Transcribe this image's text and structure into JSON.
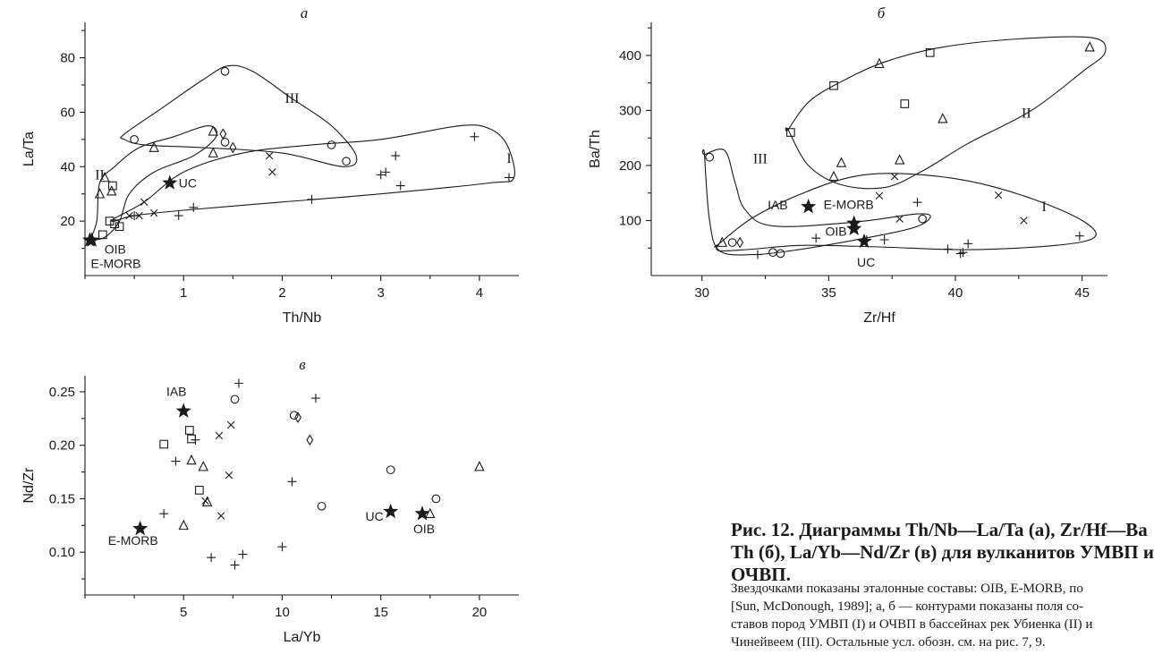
{
  "caption": {
    "title_lines": [
      "Рис. 12. Диаграммы Th/Nb—La/Ta (а), Zr/Hf—Ba",
      "Th (б), La/Yb—Nd/Zr (в) для вулканитов УМВП и",
      "ОЧВП."
    ],
    "text_lines": [
      "Звездочками показаны эталонные составы: OIB, E-MORB, по",
      "[Sun, McDonough, 1989]; а, б — контурами показаны поля со-",
      "ставов пород УМВП (I) и ОЧВП в бассейнах рек Убиенка (II) и",
      "Чинейвеем (III). Остальные усл. обозн. см. на рис. 7, 9."
    ]
  },
  "chart_data": [
    {
      "id": "a",
      "type": "scatter",
      "title": "а",
      "xlabel": "Th/Nb",
      "ylabel": "La/Ta",
      "xlim": [
        0,
        4.4
      ],
      "ylim": [
        0,
        93
      ],
      "xticks": [
        1,
        2,
        3,
        4
      ],
      "yticks": [
        20,
        40,
        60,
        80
      ],
      "series": [
        {
          "marker": "circle",
          "points": [
            [
              0.5,
              50
            ],
            [
              1.42,
              75
            ],
            [
              1.42,
              49
            ],
            [
              2.5,
              48
            ],
            [
              2.65,
              42
            ]
          ]
        },
        {
          "marker": "triangle",
          "points": [
            [
              0.15,
              30
            ],
            [
              0.2,
              36
            ],
            [
              0.27,
              31
            ],
            [
              0.7,
              47
            ],
            [
              1.3,
              45
            ],
            [
              1.3,
              53
            ]
          ]
        },
        {
          "marker": "square",
          "points": [
            [
              0.18,
              15
            ],
            [
              0.25,
              20
            ],
            [
              0.28,
              33
            ],
            [
              0.3,
              19
            ],
            [
              0.35,
              18
            ]
          ]
        },
        {
          "marker": "diamond",
          "points": [
            [
              1.4,
              52
            ],
            [
              1.5,
              47
            ]
          ]
        },
        {
          "marker": "x",
          "points": [
            [
              0.45,
              22
            ],
            [
              0.55,
              22
            ],
            [
              0.6,
              27
            ],
            [
              0.7,
              23
            ],
            [
              1.87,
              44
            ],
            [
              1.9,
              38
            ]
          ]
        },
        {
          "marker": "plus",
          "points": [
            [
              0.5,
              22
            ],
            [
              0.95,
              22
            ],
            [
              1.1,
              25
            ],
            [
              2.3,
              28
            ],
            [
              3.0,
              37
            ],
            [
              3.05,
              38
            ],
            [
              3.15,
              44
            ],
            [
              3.2,
              33
            ],
            [
              3.95,
              51
            ],
            [
              4.3,
              36
            ]
          ]
        }
      ],
      "references": [
        {
          "label": "UC",
          "x": 0.86,
          "y": 34
        },
        {
          "label": "OIB",
          "x": 0.07,
          "y": 13
        },
        {
          "label": "E-MORB",
          "x": 0.05,
          "y": 13
        }
      ],
      "fields": [
        {
          "label": "I",
          "points": [
            [
              0.3,
              21
            ],
            [
              0.6,
              27
            ],
            [
              1.0,
              38
            ],
            [
              1.6,
              45
            ],
            [
              2.3,
              48
            ],
            [
              3.0,
              50
            ],
            [
              3.8,
              55
            ],
            [
              4.1,
              54
            ],
            [
              4.28,
              48
            ],
            [
              4.35,
              36
            ],
            [
              4.1,
              34
            ],
            [
              3.0,
              30
            ],
            [
              2.0,
              27
            ],
            [
              1.0,
              24
            ],
            [
              0.5,
              22
            ],
            [
              0.3,
              20
            ]
          ]
        },
        {
          "label": "II",
          "points": [
            [
              0.05,
              13
            ],
            [
              0.12,
              20
            ],
            [
              0.15,
              34
            ],
            [
              0.3,
              40
            ],
            [
              0.55,
              47
            ],
            [
              0.9,
              51
            ],
            [
              1.25,
              55
            ],
            [
              1.33,
              51
            ],
            [
              1.1,
              44
            ],
            [
              0.7,
              38
            ],
            [
              0.45,
              30
            ],
            [
              0.35,
              20
            ],
            [
              0.2,
              14
            ],
            [
              0.05,
              13
            ]
          ]
        },
        {
          "label": "III",
          "points": [
            [
              0.4,
              52
            ],
            [
              0.8,
              62
            ],
            [
              1.2,
              72
            ],
            [
              1.45,
              77
            ],
            [
              1.7,
              75
            ],
            [
              2.1,
              65
            ],
            [
              2.5,
              55
            ],
            [
              2.75,
              44
            ],
            [
              2.62,
              40
            ],
            [
              2.0,
              45
            ],
            [
              1.2,
              47
            ],
            [
              0.6,
              48
            ],
            [
              0.4,
              50
            ]
          ]
        }
      ],
      "field_labels": [
        {
          "label": "I",
          "x": 4.3,
          "y": 43
        },
        {
          "label": "II",
          "x": 0.15,
          "y": 37
        },
        {
          "label": "III",
          "x": 2.1,
          "y": 65
        }
      ]
    },
    {
      "id": "b",
      "type": "scatter",
      "title": "б",
      "xlabel": "Zr/Hf",
      "ylabel": "Ba/Th",
      "xlim": [
        28,
        46
      ],
      "ylim": [
        0,
        460
      ],
      "xticks": [
        30,
        35,
        40,
        45
      ],
      "yticks": [
        100,
        200,
        300,
        400
      ],
      "series": [
        {
          "marker": "circle",
          "points": [
            [
              30.3,
              215
            ],
            [
              31.2,
              60
            ],
            [
              32.8,
              42
            ],
            [
              33.1,
              40
            ],
            [
              38.7,
              103
            ]
          ]
        },
        {
          "marker": "triangle",
          "points": [
            [
              30.8,
              60
            ],
            [
              35.2,
              180
            ],
            [
              35.5,
              205
            ],
            [
              37,
              385
            ],
            [
              37.8,
              210
            ],
            [
              39.5,
              285
            ],
            [
              45.3,
              415
            ]
          ]
        },
        {
          "marker": "square",
          "points": [
            [
              33.5,
              260
            ],
            [
              35.2,
              345
            ],
            [
              38,
              312
            ],
            [
              39,
              405
            ]
          ]
        },
        {
          "marker": "diamond",
          "points": [
            [
              31.5,
              60
            ]
          ]
        },
        {
          "marker": "x",
          "points": [
            [
              37,
              145
            ],
            [
              37.6,
              180
            ],
            [
              37.8,
              103
            ],
            [
              41.7,
              146
            ],
            [
              42.7,
              100
            ]
          ]
        },
        {
          "marker": "plus",
          "points": [
            [
              32.2,
              38
            ],
            [
              34.5,
              68
            ],
            [
              36.5,
              65
            ],
            [
              37.2,
              65
            ],
            [
              38.5,
              133
            ],
            [
              39.7,
              48
            ],
            [
              40.2,
              40
            ],
            [
              40.3,
              42
            ],
            [
              40.5,
              58
            ],
            [
              44.9,
              72
            ]
          ]
        }
      ],
      "references": [
        {
          "label": "IAB",
          "x": 34.2,
          "y": 125
        },
        {
          "label": "E-MORB",
          "x": 36.0,
          "y": 95
        },
        {
          "label": "OIB",
          "x": 36.0,
          "y": 85
        },
        {
          "label": "UC",
          "x": 36.4,
          "y": 62
        }
      ],
      "fields": [
        {
          "label": "I",
          "points": [
            [
              30.6,
              55
            ],
            [
              32,
              105
            ],
            [
              34,
              150
            ],
            [
              36,
              180
            ],
            [
              38,
              185
            ],
            [
              40.5,
              172
            ],
            [
              43,
              140
            ],
            [
              45,
              100
            ],
            [
              45.5,
              70
            ],
            [
              44,
              55
            ],
            [
              40.5,
              47
            ],
            [
              37,
              52
            ],
            [
              34,
              55
            ],
            [
              32,
              48
            ],
            [
              30.7,
              45
            ],
            [
              30.6,
              55
            ]
          ]
        },
        {
          "label": "II",
          "points": [
            [
              33.4,
              265
            ],
            [
              34.2,
              315
            ],
            [
              35.4,
              350
            ],
            [
              37.2,
              388
            ],
            [
              39.5,
              415
            ],
            [
              42.5,
              430
            ],
            [
              45.4,
              432
            ],
            [
              45.9,
              405
            ],
            [
              45,
              370
            ],
            [
              43,
              300
            ],
            [
              40.5,
              240
            ],
            [
              38.7,
              190
            ],
            [
              37.2,
              160
            ],
            [
              35.5,
              165
            ],
            [
              34.2,
              200
            ],
            [
              33.4,
              265
            ]
          ]
        },
        {
          "label": "III",
          "points": [
            [
              30.1,
              220
            ],
            [
              30.9,
              227
            ],
            [
              31.3,
              170
            ],
            [
              31.7,
              120
            ],
            [
              32.8,
              90
            ],
            [
              36,
              97
            ],
            [
              38.5,
              112
            ],
            [
              39,
              105
            ],
            [
              38.2,
              85
            ],
            [
              35.5,
              60
            ],
            [
              33.5,
              45
            ],
            [
              32,
              38
            ],
            [
              30.7,
              45
            ],
            [
              30.3,
              100
            ],
            [
              30.1,
              220
            ]
          ]
        }
      ],
      "field_labels": [
        {
          "label": "I",
          "x": 43.5,
          "y": 125
        },
        {
          "label": "II",
          "x": 42.8,
          "y": 295
        },
        {
          "label": "III",
          "x": 32.3,
          "y": 212
        }
      ]
    },
    {
      "id": "c",
      "type": "scatter",
      "title": "в",
      "xlabel": "La/Yb",
      "ylabel": "Nd/Zr",
      "xlim": [
        0,
        22
      ],
      "ylim": [
        0.06,
        0.265
      ],
      "xticks": [
        5,
        10,
        15,
        20
      ],
      "yticks": [
        0.1,
        0.15,
        0.2,
        0.25
      ],
      "ytick_labels": [
        "0.10",
        "0.15",
        "0.20",
        "0.25"
      ],
      "series": [
        {
          "marker": "circle",
          "points": [
            [
              7.6,
              0.243
            ],
            [
              10.6,
              0.228
            ],
            [
              12.0,
              0.143
            ],
            [
              15.5,
              0.177
            ],
            [
              17.8,
              0.15
            ]
          ]
        },
        {
          "marker": "triangle",
          "points": [
            [
              5.0,
              0.125
            ],
            [
              5.4,
              0.186
            ],
            [
              6.0,
              0.18
            ],
            [
              6.2,
              0.147
            ],
            [
              17.5,
              0.136
            ],
            [
              20.0,
              0.18
            ]
          ]
        },
        {
          "marker": "square",
          "points": [
            [
              4.0,
              0.201
            ],
            [
              5.3,
              0.214
            ],
            [
              5.4,
              0.206
            ],
            [
              5.8,
              0.158
            ]
          ]
        },
        {
          "marker": "diamond",
          "points": [
            [
              10.8,
              0.226
            ],
            [
              11.4,
              0.205
            ]
          ]
        },
        {
          "marker": "x",
          "points": [
            [
              6.1,
              0.148
            ],
            [
              6.8,
              0.209
            ],
            [
              6.9,
              0.134
            ],
            [
              7.3,
              0.172
            ],
            [
              7.4,
              0.219
            ]
          ]
        },
        {
          "marker": "plus",
          "points": [
            [
              4.0,
              0.136
            ],
            [
              4.6,
              0.185
            ],
            [
              5.6,
              0.205
            ],
            [
              6.4,
              0.095
            ],
            [
              7.6,
              0.088
            ],
            [
              7.8,
              0.258
            ],
            [
              8.0,
              0.098
            ],
            [
              10.0,
              0.105
            ],
            [
              10.5,
              0.166
            ],
            [
              11.7,
              0.244
            ]
          ]
        }
      ],
      "references": [
        {
          "label": "IAB",
          "x": 5.0,
          "y": 0.232
        },
        {
          "label": "E-MORB",
          "x": 2.8,
          "y": 0.122
        },
        {
          "label": "UC",
          "x": 15.5,
          "y": 0.138
        },
        {
          "label": "OIB",
          "x": 17.1,
          "y": 0.136
        }
      ]
    }
  ]
}
